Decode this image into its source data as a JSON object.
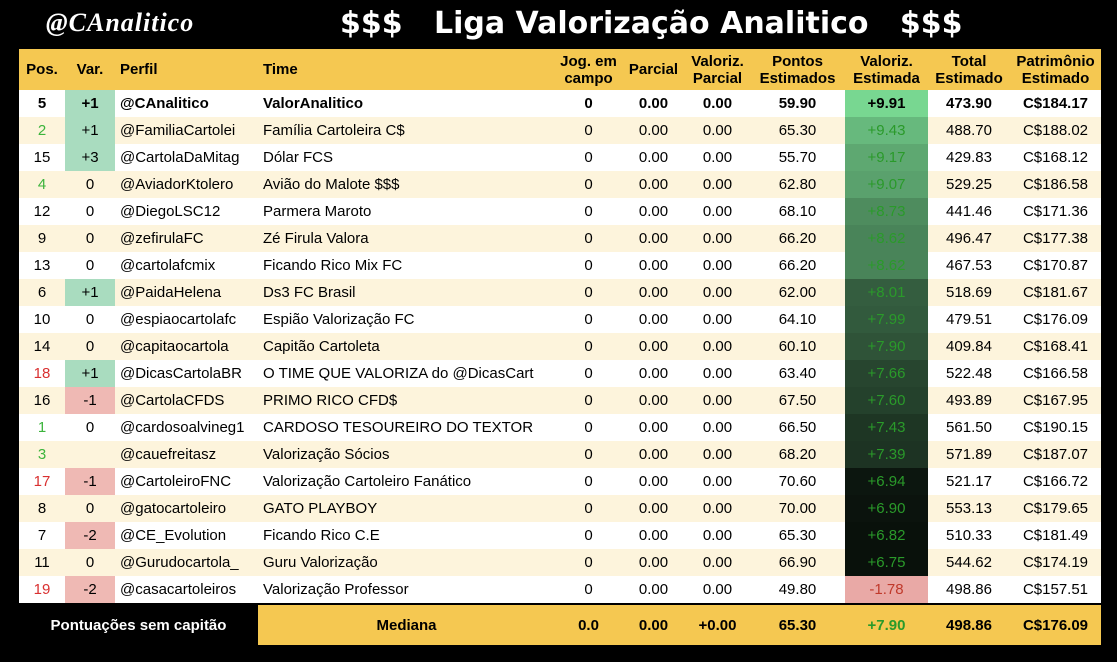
{
  "header": {
    "logo": "@CAnalitico",
    "title": "$$$   Liga Valorização Analitico   $$$"
  },
  "table": {
    "columns": [
      "Pos.",
      "Var.",
      "Perfil",
      "Time",
      "Jog. em campo",
      "Parcial",
      "Valoriz. Parcial",
      "Pontos Estimados",
      "Valoriz. Estimada",
      "Total Estimado",
      "Patrimônio Estimado"
    ],
    "highlight_row": 0,
    "pos_colors": [
      "#000000",
      "#3cb43c",
      "#000000",
      "#3cb43c",
      "#000000",
      "#000000",
      "#000000",
      "#000000",
      "#000000",
      "#000000",
      "#d93030",
      "#000000",
      "#3cb43c",
      "#3cb43c",
      "#d93030",
      "#000000",
      "#000000",
      "#000000",
      "#d93030"
    ],
    "rows": [
      [
        "5",
        "+1",
        "@CAnalitico",
        "ValorAnalitico",
        "0",
        "0.00",
        "0.00",
        "59.90",
        "+9.91",
        "473.90",
        "C$184.17"
      ],
      [
        "2",
        "+1",
        "@FamiliaCartolei",
        "Família Cartoleira C$",
        "0",
        "0.00",
        "0.00",
        "65.30",
        "+9.43",
        "488.70",
        "C$188.02"
      ],
      [
        "15",
        "+3",
        "@CartolaDaMitag",
        "Dólar FCS",
        "0",
        "0.00",
        "0.00",
        "55.70",
        "+9.17",
        "429.83",
        "C$168.12"
      ],
      [
        "4",
        "0",
        "@AviadorKtolero",
        "Avião do Malote $$$",
        "0",
        "0.00",
        "0.00",
        "62.80",
        "+9.07",
        "529.25",
        "C$186.58"
      ],
      [
        "12",
        "0",
        "@DiegoLSC12",
        "Parmera Maroto",
        "0",
        "0.00",
        "0.00",
        "68.10",
        "+8.73",
        "441.46",
        "C$171.36"
      ],
      [
        "9",
        "0",
        "@zefirulaFC",
        "Zé Firula Valora",
        "0",
        "0.00",
        "0.00",
        "66.20",
        "+8.62",
        "496.47",
        "C$177.38"
      ],
      [
        "13",
        "0",
        "@cartolafcmix",
        "Ficando Rico Mix FC",
        "0",
        "0.00",
        "0.00",
        "66.20",
        "+8.62",
        "467.53",
        "C$170.87"
      ],
      [
        "6",
        "+1",
        "@PaidaHelena",
        "Ds3 FC Brasil",
        "0",
        "0.00",
        "0.00",
        "62.00",
        "+8.01",
        "518.69",
        "C$181.67"
      ],
      [
        "10",
        "0",
        "@espiaocartolafc",
        "Espião Valorização FC",
        "0",
        "0.00",
        "0.00",
        "64.10",
        "+7.99",
        "479.51",
        "C$176.09"
      ],
      [
        "14",
        "0",
        "@capitaocartola",
        "Capitão Cartoleta",
        "0",
        "0.00",
        "0.00",
        "60.10",
        "+7.90",
        "409.84",
        "C$168.41"
      ],
      [
        "18",
        "+1",
        "@DicasCartolaBR",
        "O TIME QUE VALORIZA do @DicasCart",
        "0",
        "0.00",
        "0.00",
        "63.40",
        "+7.66",
        "522.48",
        "C$166.58"
      ],
      [
        "16",
        "-1",
        "@CartolaCFDS",
        "PRIMO RICO CFD$",
        "0",
        "0.00",
        "0.00",
        "67.50",
        "+7.60",
        "493.89",
        "C$167.95"
      ],
      [
        "1",
        "0",
        "@cardosoalvineg1",
        "CARDOSO TESOUREIRO DO TEXTOR",
        "0",
        "0.00",
        "0.00",
        "66.50",
        "+7.43",
        "561.50",
        "C$190.15"
      ],
      [
        "3",
        null,
        "@cauefreitasz",
        "Valorização Sócios",
        "0",
        "0.00",
        "0.00",
        "68.20",
        "+7.39",
        "571.89",
        "C$187.07"
      ],
      [
        "17",
        "-1",
        "@CartoleiroFNC",
        "Valorização Cartoleiro Fanático",
        "0",
        "0.00",
        "0.00",
        "70.60",
        "+6.94",
        "521.17",
        "C$166.72"
      ],
      [
        "8",
        "0",
        "@gatocartoleiro",
        "GATO PLAYBOY",
        "0",
        "0.00",
        "0.00",
        "70.00",
        "+6.90",
        "553.13",
        "C$179.65"
      ],
      [
        "7",
        "-2",
        "@CE_Evolution",
        "Ficando Rico C.E",
        "0",
        "0.00",
        "0.00",
        "65.30",
        "+6.82",
        "510.33",
        "C$181.49"
      ],
      [
        "11",
        "0",
        "@Gurudocartola_",
        "Guru Valorização",
        "0",
        "0.00",
        "0.00",
        "66.90",
        "+6.75",
        "544.62",
        "C$174.19"
      ],
      [
        "19",
        "-2",
        "@casacartoleiros",
        "Valorização Professor",
        "0",
        "0.00",
        "0.00",
        "49.80",
        "-1.78",
        "498.86",
        "C$157.51"
      ]
    ],
    "footer": {
      "note": "Pontuações sem capitão",
      "label": "Mediana",
      "values": [
        "0.0",
        "0.00",
        "+0.00",
        "65.30",
        "+7.90",
        "498.86",
        "C$176.09"
      ]
    }
  }
}
